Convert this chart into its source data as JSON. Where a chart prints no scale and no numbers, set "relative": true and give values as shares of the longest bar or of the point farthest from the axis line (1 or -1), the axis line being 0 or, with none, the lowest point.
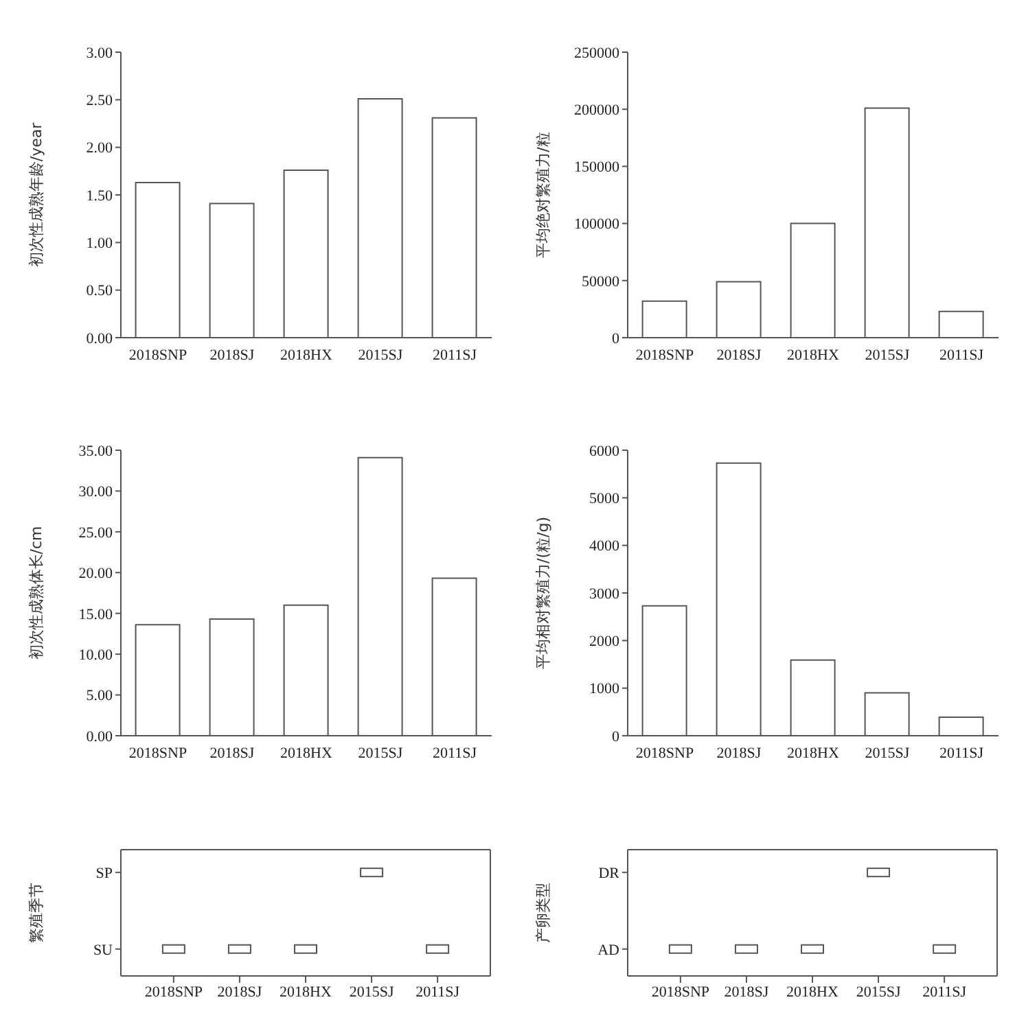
{
  "chart_data": [
    {
      "type": "bar",
      "ylabel": "初次性成熟年龄/year",
      "categories": [
        "2018SNP",
        "2018SJ",
        "2018HX",
        "2015SJ",
        "2011SJ"
      ],
      "values": [
        1.63,
        1.41,
        1.76,
        2.51,
        2.31
      ],
      "color": "#ffffff",
      "ylim": [
        0,
        3
      ],
      "yticks": [
        {
          "value": 0,
          "label": "0.00"
        },
        {
          "value": 0.5,
          "label": "0.50"
        },
        {
          "value": 1,
          "label": "1.00"
        },
        {
          "value": 1.5,
          "label": "1.50"
        },
        {
          "value": 2,
          "label": "2.00"
        },
        {
          "value": 2.5,
          "label": "2.50"
        },
        {
          "value": 3,
          "label": "3.00"
        }
      ],
      "grid": false
    },
    {
      "type": "bar",
      "ylabel": "平均绝对繁殖力/粒",
      "categories": [
        "2018SNP",
        "2018SJ",
        "2018HX",
        "2015SJ",
        "2011SJ"
      ],
      "values": [
        32000,
        49000,
        100000,
        201000,
        23000
      ],
      "color": "#ffffff",
      "ylim": [
        0,
        250000
      ],
      "yticks": [
        0,
        50000,
        100000,
        150000,
        200000,
        250000
      ],
      "grid": false
    },
    {
      "type": "bar",
      "ylabel": "初次性成熟体长/cm",
      "categories": [
        "2018SNP",
        "2018SJ",
        "2018HX",
        "2015SJ",
        "2011SJ"
      ],
      "values": [
        13.6,
        14.3,
        16.0,
        34.1,
        19.3
      ],
      "color": "#ffffff",
      "ylim": [
        0,
        35
      ],
      "yticks": [
        {
          "value": 0,
          "label": "0.00"
        },
        {
          "value": 5,
          "label": "5.00"
        },
        {
          "value": 10,
          "label": "10.00"
        },
        {
          "value": 15,
          "label": "15.00"
        },
        {
          "value": 20,
          "label": "20.00"
        },
        {
          "value": 25,
          "label": "25.00"
        },
        {
          "value": 30,
          "label": "30.00"
        },
        {
          "value": 35,
          "label": "35.00"
        }
      ],
      "grid": false
    },
    {
      "type": "bar",
      "ylabel": "平均相对繁殖力/(粒/g)",
      "categories": [
        "2018SNP",
        "2018SJ",
        "2018HX",
        "2015SJ",
        "2011SJ"
      ],
      "values": [
        2730,
        5730,
        1590,
        900,
        390
      ],
      "color": "#ffffff",
      "ylim": [
        0,
        6000
      ],
      "yticks": [
        0,
        1000,
        2000,
        3000,
        4000,
        5000,
        6000
      ],
      "grid": false
    },
    {
      "type": "scatter",
      "relative": true,
      "ylabel": "繁殖季节",
      "categories": [
        "2018SNP",
        "2018SJ",
        "2018HX",
        "2015SJ",
        "2011SJ"
      ],
      "values": [
        0.26,
        0.26,
        0.26,
        1,
        0.26
      ],
      "color": "#ffffff",
      "marker": "square",
      "annotations": [
        "SP",
        "SU"
      ],
      "grid": false
    },
    {
      "type": "scatter",
      "relative": true,
      "ylabel": "产卵类型",
      "categories": [
        "2018SNP",
        "2018SJ",
        "2018HX",
        "2015SJ",
        "2011SJ"
      ],
      "values": [
        0.26,
        0.26,
        0.26,
        1,
        0.26
      ],
      "color": "#ffffff",
      "marker": "square",
      "annotations": [
        "DR",
        "AD"
      ],
      "grid": false
    }
  ]
}
